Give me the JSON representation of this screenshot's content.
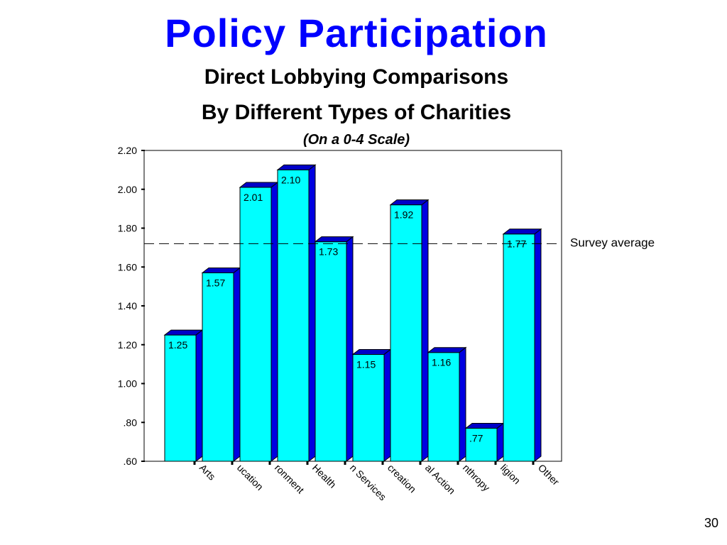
{
  "slide": {
    "title": "Policy Participation",
    "subtitle_line1": "Direct Lobbying Comparisons",
    "subtitle_line2": "By Different Types of Charities",
    "subtitle_line3": "(On a 0-4 Scale)",
    "slide_number": "30"
  },
  "chart_data": {
    "type": "bar",
    "categories": [
      "Arts",
      "Education",
      "Environment",
      "Health",
      "Human Services",
      "Recreation",
      "Social Action",
      "Philanthropy",
      "Religion",
      "Other"
    ],
    "category_labels": [
      "Arts",
      "ucation",
      "ronment",
      "Health",
      "n Services",
      "creation",
      "al Action",
      "nthropy",
      "ligion",
      "Other"
    ],
    "values": [
      1.25,
      1.57,
      2.01,
      2.1,
      1.73,
      1.15,
      1.92,
      1.16,
      0.77,
      1.77
    ],
    "value_labels": [
      "1.25",
      "1.57",
      "2.01",
      "2.10",
      "1.73",
      "1.15",
      "1.92",
      "1.16",
      ".77",
      "1.77"
    ],
    "ylim": [
      0.6,
      2.2
    ],
    "yticks": [
      0.6,
      0.8,
      1.0,
      1.2,
      1.4,
      1.6,
      1.8,
      2.0,
      2.2
    ],
    "ytick_labels": [
      ".60",
      ".80",
      "1.00",
      "1.20",
      "1.40",
      "1.60",
      "1.80",
      "2.00",
      "2.20"
    ],
    "reference_line": {
      "label": "Survey average",
      "value": 1.72
    },
    "colors": {
      "bar_face": "#00ffff",
      "bar_side": "#0000e0",
      "bar_top": "#0000c8",
      "outline": "#000000"
    },
    "grid": false,
    "bar_style": "3d"
  }
}
